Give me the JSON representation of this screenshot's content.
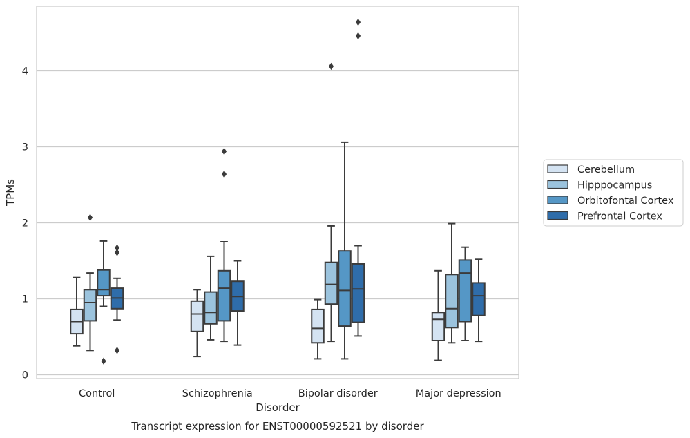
{
  "chart_data": {
    "type": "box",
    "title": "Transcript expression for ENST00000592521 by disorder",
    "xlabel": "Disorder",
    "ylabel": "TPMs",
    "ylim": [
      -0.05,
      4.85
    ],
    "yticks": [
      0,
      1,
      2,
      3,
      4
    ],
    "grid": "horizontal",
    "legend_position": "right",
    "categories": [
      "Control",
      "Schizophrenia",
      "Bipolar disorder",
      "Major depression"
    ],
    "series": [
      {
        "name": "Cerebellum",
        "color": "#d4e3f2",
        "boxes": [
          {
            "whislo": 0.38,
            "q1": 0.54,
            "med": 0.7,
            "q3": 0.86,
            "whishi": 1.28,
            "fliers": []
          },
          {
            "whislo": 0.24,
            "q1": 0.57,
            "med": 0.8,
            "q3": 0.97,
            "whishi": 1.12,
            "fliers": []
          },
          {
            "whislo": 0.21,
            "q1": 0.42,
            "med": 0.61,
            "q3": 0.86,
            "whishi": 0.99,
            "fliers": []
          },
          {
            "whislo": 0.19,
            "q1": 0.45,
            "med": 0.73,
            "q3": 0.82,
            "whishi": 1.37,
            "fliers": []
          }
        ]
      },
      {
        "name": "Hipppocampus",
        "color": "#9bc3dd",
        "boxes": [
          {
            "whislo": 0.32,
            "q1": 0.71,
            "med": 0.95,
            "q3": 1.12,
            "whishi": 1.34,
            "fliers": [
              2.07
            ]
          },
          {
            "whislo": 0.46,
            "q1": 0.67,
            "med": 0.82,
            "q3": 1.09,
            "whishi": 1.56,
            "fliers": []
          },
          {
            "whislo": 0.44,
            "q1": 0.93,
            "med": 1.19,
            "q3": 1.48,
            "whishi": 1.96,
            "fliers": [
              4.06
            ]
          },
          {
            "whislo": 0.42,
            "q1": 0.62,
            "med": 0.87,
            "q3": 1.32,
            "whishi": 1.99,
            "fliers": []
          }
        ]
      },
      {
        "name": "Orbitofontal Cortex",
        "color": "#5597c6",
        "boxes": [
          {
            "whislo": 0.9,
            "q1": 1.04,
            "med": 1.12,
            "q3": 1.38,
            "whishi": 1.76,
            "fliers": [
              0.18
            ]
          },
          {
            "whislo": 0.44,
            "q1": 0.71,
            "med": 1.14,
            "q3": 1.37,
            "whishi": 1.75,
            "fliers": [
              2.94,
              2.64
            ]
          },
          {
            "whislo": 0.21,
            "q1": 0.64,
            "med": 1.11,
            "q3": 1.63,
            "whishi": 3.06,
            "fliers": []
          },
          {
            "whislo": 0.45,
            "q1": 0.7,
            "med": 1.34,
            "q3": 1.51,
            "whishi": 1.68,
            "fliers": []
          }
        ]
      },
      {
        "name": "Prefrontal Cortex",
        "color": "#2f6daa",
        "boxes": [
          {
            "whislo": 0.72,
            "q1": 0.87,
            "med": 1.01,
            "q3": 1.14,
            "whishi": 1.27,
            "fliers": [
              1.67,
              1.61,
              0.32
            ]
          },
          {
            "whislo": 0.39,
            "q1": 0.84,
            "med": 1.03,
            "q3": 1.23,
            "whishi": 1.5,
            "fliers": []
          },
          {
            "whislo": 0.51,
            "q1": 0.69,
            "med": 1.13,
            "q3": 1.46,
            "whishi": 1.7,
            "fliers": [
              4.64,
              4.46
            ]
          },
          {
            "whislo": 0.44,
            "q1": 0.78,
            "med": 1.04,
            "q3": 1.21,
            "whishi": 1.52,
            "fliers": []
          }
        ]
      }
    ]
  }
}
